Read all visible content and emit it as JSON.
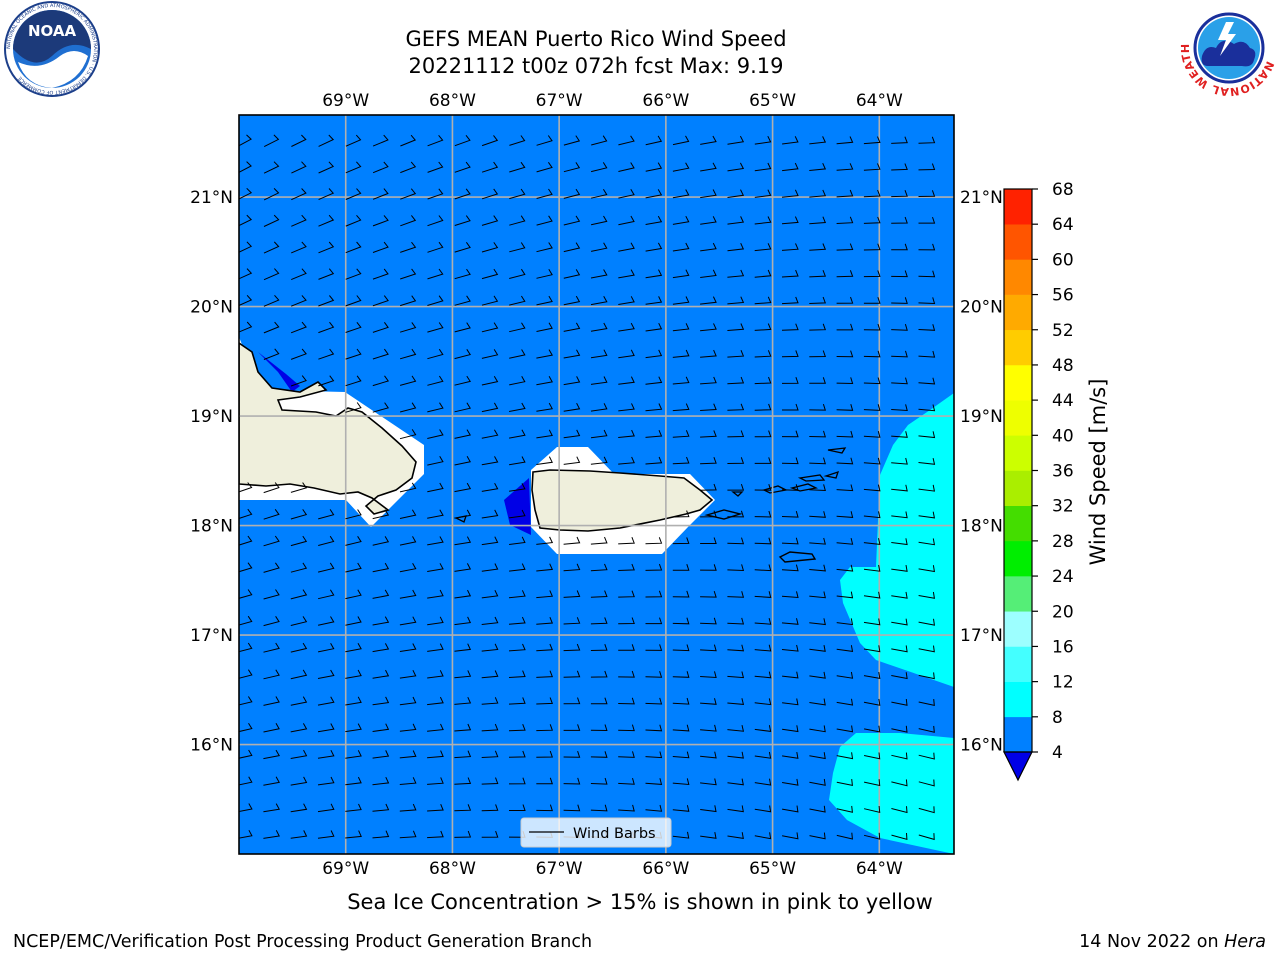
{
  "header": {
    "title_line1": "GEFS MEAN Puerto Rico Wind Speed",
    "title_line2": "20221112 t00z 072h fcst   Max: 9.19"
  },
  "logos": {
    "left": {
      "name": "noaa-logo",
      "text": "NOAA",
      "ring_text": "NATIONAL OCEANIC AND ATMOSPHERIC ADMINISTRATION · U.S. DEPARTMENT OF COMMERCE"
    },
    "right": {
      "name": "nws-logo",
      "ring_text": "NATIONAL WEATHER SERVICE"
    }
  },
  "map": {
    "lon_labels": [
      "69°W",
      "68°W",
      "67°W",
      "66°W",
      "65°W",
      "64°W"
    ],
    "lat_labels": [
      "21°N",
      "20°N",
      "19°N",
      "18°N",
      "17°N",
      "16°N"
    ],
    "lon_range": [
      -70.0,
      -63.3
    ],
    "lat_range": [
      15.0,
      21.75
    ],
    "gridlines": true,
    "colors": {
      "ocean_4_8": "#0080ff",
      "speed_8_12": "#00ffff",
      "speed_below_4": "#0000e6",
      "land": "#efefdc",
      "masked": "#ffffff",
      "grid": "#b0b0b0"
    }
  },
  "legend": {
    "label": "Wind Barbs",
    "placement": "bottom-center"
  },
  "colorbar": {
    "label": "Wind Speed [m/s]",
    "ticks": [
      "4",
      "8",
      "12",
      "16",
      "20",
      "24",
      "28",
      "32",
      "36",
      "40",
      "44",
      "48",
      "52",
      "56",
      "60",
      "64",
      "68"
    ],
    "colors": [
      "#0080ff",
      "#00ffff",
      "#44ffff",
      "#9dffff",
      "#55ee77",
      "#00ee00",
      "#44dd00",
      "#aaee00",
      "#ccff00",
      "#eeff00",
      "#ffff00",
      "#ffcc00",
      "#ffaa00",
      "#ff8800",
      "#ff5500",
      "#ff2200"
    ],
    "underflow_color": "#0000e6"
  },
  "notes": {
    "sea_ice": "Sea Ice Concentration > 15% is shown in pink to yellow"
  },
  "footer": {
    "left": "NCEP/EMC/Verification Post Processing Product Generation Branch",
    "date": "14 Nov 2022 on ",
    "machine": "Hera"
  }
}
